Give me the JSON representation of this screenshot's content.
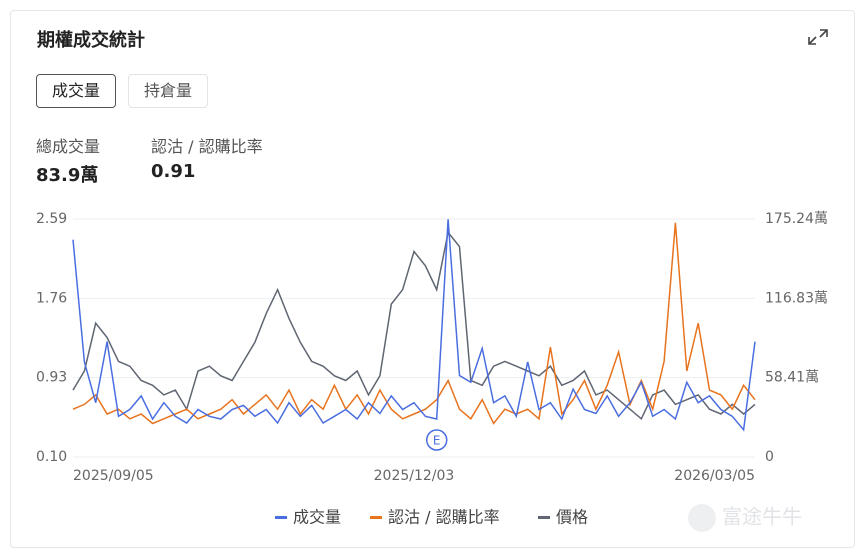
{
  "header": {
    "title": "期權成交統計"
  },
  "tabs": [
    "成交量",
    "持倉量"
  ],
  "stats": [
    {
      "label": "總成交量",
      "value": "83.9萬"
    },
    {
      "label": "認沽 / 認購比率",
      "value": "0.91"
    }
  ],
  "watermark": "富途牛牛",
  "chart_data": {
    "type": "line",
    "categories": [
      "2025/09/05",
      null,
      null,
      null,
      null,
      null,
      null,
      null,
      null,
      null,
      null,
      null,
      null,
      null,
      null,
      null,
      null,
      null,
      null,
      null,
      null,
      null,
      null,
      null,
      null,
      null,
      null,
      null,
      null,
      null,
      "2025/12/03",
      null,
      null,
      null,
      null,
      null,
      null,
      null,
      null,
      null,
      null,
      null,
      null,
      null,
      null,
      null,
      null,
      null,
      null,
      null,
      null,
      null,
      null,
      null,
      null,
      null,
      null,
      null,
      null,
      null,
      "2026/03/05"
    ],
    "ylim": [
      0.1,
      2.59
    ],
    "yticks": [
      {
        "value": 0.1,
        "label": "0.10"
      },
      0.93,
      1.76,
      2.59
    ],
    "y2lim": [
      0,
      175.24
    ],
    "y2ticks": [
      0,
      {
        "value": 58.41,
        "label": "58.41萬"
      },
      {
        "value": 116.83,
        "label": "116.83萬"
      },
      {
        "value": 175.24,
        "label": "175.24萬"
      }
    ],
    "grid": true,
    "legend": "bottom",
    "annotations": [
      "E"
    ],
    "series": [
      {
        "name": "成交量",
        "color": "#4a6ee0",
        "axis": "y2",
        "values": [
          160,
          70,
          40,
          85,
          30,
          35,
          45,
          28,
          40,
          30,
          25,
          35,
          30,
          28,
          35,
          38,
          30,
          35,
          25,
          40,
          30,
          38,
          25,
          30,
          35,
          28,
          40,
          32,
          45,
          35,
          40,
          30,
          28,
          175,
          60,
          55,
          80,
          40,
          45,
          30,
          70,
          35,
          40,
          28,
          50,
          35,
          32,
          45,
          30,
          40,
          55,
          30,
          35,
          28,
          55,
          40,
          45,
          35,
          30,
          20,
          85
        ]
      },
      {
        "name": "認沽 / 認購比率",
        "color": "#e8731e",
        "values": [
          0.6,
          0.65,
          0.75,
          0.55,
          0.6,
          0.5,
          0.55,
          0.45,
          0.5,
          0.55,
          0.6,
          0.5,
          0.55,
          0.6,
          0.7,
          0.55,
          0.65,
          0.75,
          0.6,
          0.8,
          0.55,
          0.7,
          0.6,
          0.85,
          0.6,
          0.75,
          0.55,
          0.8,
          0.6,
          0.5,
          0.55,
          0.6,
          0.7,
          0.9,
          0.6,
          0.5,
          0.7,
          0.45,
          0.6,
          0.55,
          0.6,
          0.5,
          1.25,
          0.55,
          0.7,
          0.9,
          0.6,
          0.85,
          1.2,
          0.65,
          0.9,
          0.6,
          1.1,
          2.55,
          1.0,
          1.5,
          0.8,
          0.75,
          0.6,
          0.85,
          0.7
        ]
      },
      {
        "name": "價格",
        "color": "#5f6672",
        "values": [
          0.8,
          1.0,
          1.5,
          1.35,
          1.1,
          1.05,
          0.9,
          0.85,
          0.75,
          0.8,
          0.6,
          1.0,
          1.05,
          0.95,
          0.9,
          1.1,
          1.3,
          1.6,
          1.85,
          1.55,
          1.3,
          1.1,
          1.05,
          0.95,
          0.9,
          1.0,
          0.75,
          0.95,
          1.7,
          1.85,
          2.25,
          2.1,
          1.85,
          2.45,
          2.3,
          0.9,
          0.85,
          1.05,
          1.1,
          1.05,
          1.0,
          0.95,
          1.05,
          0.85,
          0.9,
          1.0,
          0.75,
          0.8,
          0.7,
          0.6,
          0.5,
          0.75,
          0.8,
          0.65,
          0.7,
          0.75,
          0.6,
          0.55,
          0.65,
          0.55,
          0.65
        ]
      }
    ]
  }
}
